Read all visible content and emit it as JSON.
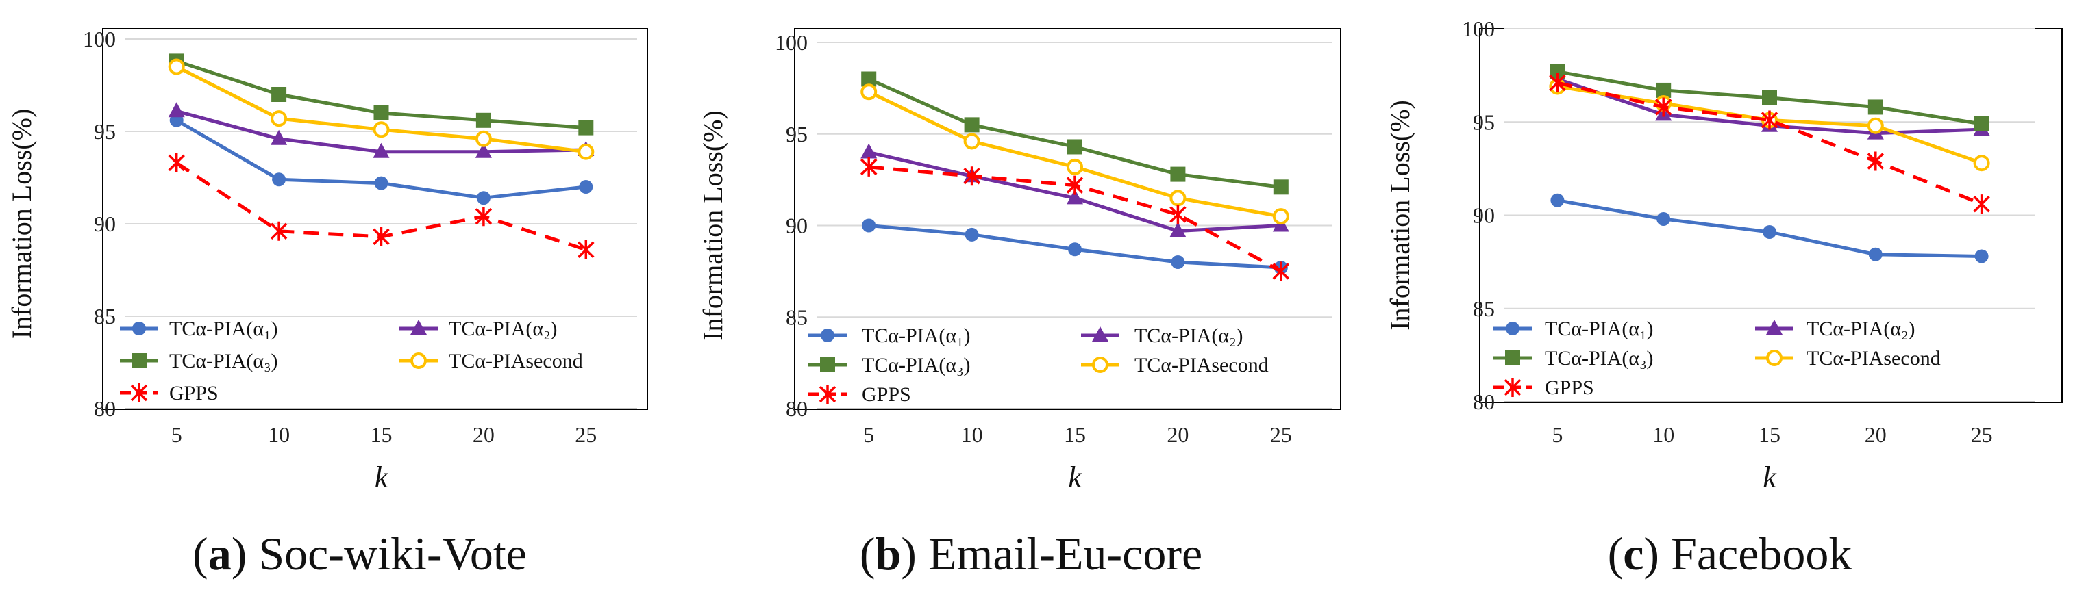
{
  "colors": {
    "s1": "#4472C4",
    "s2": "#7030A0",
    "s3": "#548235",
    "s4": "#FFC000",
    "s5": "#FF0000",
    "grid": "#D9D9D9",
    "frame": "#000000"
  },
  "chart_data": [
    {
      "type": "line",
      "caption_letter": "a",
      "caption_text": "Soc-wiki-Vote",
      "xlabel": "k",
      "ylabel": "Information Loss(%)",
      "categories": [
        "5",
        "10",
        "15",
        "20",
        "25"
      ],
      "ylim": [
        80,
        100
      ],
      "yticks": [
        "80",
        "85",
        "90",
        "95",
        "100"
      ],
      "legend": [
        "TCα-PIA(α₁)",
        "TCα-PIA(α₂)",
        "TCα-PIA(α₃)",
        "TCα-PIAsecond",
        "GPPS"
      ],
      "series": [
        {
          "name": "TCα-PIA(α₁)",
          "marker": "circle",
          "values": [
            95.6,
            92.4,
            92.2,
            91.4,
            92.0
          ]
        },
        {
          "name": "TCα-PIA(α₂)",
          "marker": "triangle",
          "values": [
            96.1,
            94.6,
            93.9,
            93.9,
            94.0
          ]
        },
        {
          "name": "TCα-PIA(α₃)",
          "marker": "square",
          "values": [
            98.8,
            97.0,
            96.0,
            95.6,
            95.2
          ]
        },
        {
          "name": "TCα-PIAsecond",
          "marker": "hollow-circle",
          "values": [
            98.5,
            95.7,
            95.1,
            94.6,
            93.9
          ]
        },
        {
          "name": "GPPS",
          "marker": "star",
          "values": [
            93.3,
            89.6,
            89.3,
            90.4,
            88.6
          ]
        }
      ]
    },
    {
      "type": "line",
      "caption_letter": "b",
      "caption_text": "Email-Eu-core",
      "xlabel": "k",
      "ylabel": "Information Loss(%)",
      "categories": [
        "5",
        "10",
        "15",
        "20",
        "25"
      ],
      "ylim": [
        80,
        100
      ],
      "yticks": [
        "80",
        "85",
        "90",
        "95",
        "100"
      ],
      "legend": [
        "TCα-PIA(α₁)",
        "TCα-PIA(α₂)",
        "TCα-PIA(α₃)",
        "TCα-PIAsecond",
        "GPPS"
      ],
      "series": [
        {
          "name": "TCα-PIA(α₁)",
          "marker": "circle",
          "values": [
            90.0,
            89.5,
            88.7,
            88.0,
            87.7
          ]
        },
        {
          "name": "TCα-PIA(α₂)",
          "marker": "triangle",
          "values": [
            94.0,
            92.7,
            91.5,
            89.7,
            90.0
          ]
        },
        {
          "name": "TCα-PIA(α₃)",
          "marker": "square",
          "values": [
            98.0,
            95.5,
            94.3,
            92.8,
            92.1
          ]
        },
        {
          "name": "TCα-PIAsecond",
          "marker": "hollow-circle",
          "values": [
            97.3,
            94.6,
            93.2,
            91.5,
            90.5
          ]
        },
        {
          "name": "GPPS",
          "marker": "star",
          "values": [
            93.2,
            92.7,
            92.2,
            90.6,
            87.5
          ]
        }
      ]
    },
    {
      "type": "line",
      "caption_letter": "c",
      "caption_text": "Facebook",
      "xlabel": "k",
      "ylabel": "Information Loss(%)",
      "categories": [
        "5",
        "10",
        "15",
        "20",
        "25"
      ],
      "ylim": [
        80,
        100
      ],
      "yticks": [
        "80",
        "85",
        "90",
        "95",
        "100"
      ],
      "legend": [
        "TCα-PIA(α₁)",
        "TCα-PIA(α₂)",
        "TCα-PIA(α₃)",
        "TCα-PIAsecond",
        "GPPS"
      ],
      "series": [
        {
          "name": "TCα-PIA(α₁)",
          "marker": "circle",
          "values": [
            90.8,
            89.8,
            89.1,
            87.9,
            87.8
          ]
        },
        {
          "name": "TCα-PIA(α₂)",
          "marker": "triangle",
          "values": [
            97.3,
            95.4,
            94.8,
            94.4,
            94.6
          ]
        },
        {
          "name": "TCα-PIA(α₃)",
          "marker": "square",
          "values": [
            97.7,
            96.7,
            96.3,
            95.8,
            94.9
          ]
        },
        {
          "name": "TCα-PIAsecond",
          "marker": "hollow-circle",
          "values": [
            96.9,
            96.0,
            95.1,
            94.8,
            92.8
          ]
        },
        {
          "name": "GPPS",
          "marker": "star",
          "values": [
            97.1,
            95.8,
            95.1,
            92.9,
            90.6
          ]
        }
      ]
    }
  ]
}
